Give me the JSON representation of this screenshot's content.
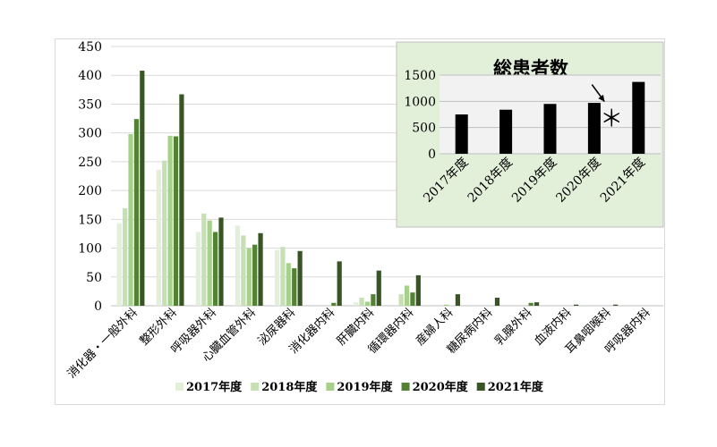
{
  "chart_data": [
    {
      "type": "bar",
      "categories": [
        "消化器・一般外科",
        "整形外科",
        "呼吸器外科",
        "心臓血管外科",
        "泌尿器科",
        "消化器内科",
        "肝臓内科",
        "循環器内科",
        "産婦人科",
        "糖尿病内科",
        "乳腺外科",
        "血液内科",
        "耳鼻咽喉科",
        "呼吸器内科"
      ],
      "series": [
        {
          "name": "2017年度",
          "color": "#e2efd9",
          "values": [
            143,
            236,
            128,
            139,
            97,
            0,
            6,
            0,
            0,
            0,
            0,
            0,
            0,
            0
          ]
        },
        {
          "name": "2018年度",
          "color": "#c5e0b3",
          "values": [
            169,
            252,
            160,
            122,
            102,
            0,
            14,
            20,
            0,
            0,
            0,
            0,
            0,
            0
          ]
        },
        {
          "name": "2019年度",
          "color": "#a8d08d",
          "values": [
            298,
            295,
            148,
            100,
            74,
            0,
            7,
            35,
            2,
            0,
            0,
            0,
            0,
            0
          ]
        },
        {
          "name": "2020年度",
          "color": "#548235",
          "values": [
            324,
            294,
            128,
            106,
            65,
            5,
            20,
            23,
            0,
            0,
            5,
            0,
            0,
            0
          ]
        },
        {
          "name": "2021年度",
          "color": "#375623",
          "values": [
            408,
            367,
            153,
            126,
            95,
            77,
            61,
            53,
            20,
            14,
            6,
            2,
            2,
            0
          ]
        }
      ],
      "ylim": [
        0,
        450
      ],
      "yticks": [
        0,
        50,
        100,
        150,
        200,
        250,
        300,
        350,
        400,
        450
      ],
      "grid": true,
      "legend": "bottom"
    },
    {
      "type": "bar",
      "title": "総患者数",
      "categories": [
        "2017年度",
        "2018年度",
        "2019年度",
        "2020年度",
        "2021年度"
      ],
      "values": [
        750,
        840,
        950,
        970,
        1370
      ],
      "ylim": [
        0,
        1500
      ],
      "yticks": [
        0,
        500,
        1000,
        1500
      ],
      "annotation": "＊",
      "background": "#e2efd9",
      "plot_background": "#f2f2f2",
      "bar_color": "#000000"
    }
  ]
}
